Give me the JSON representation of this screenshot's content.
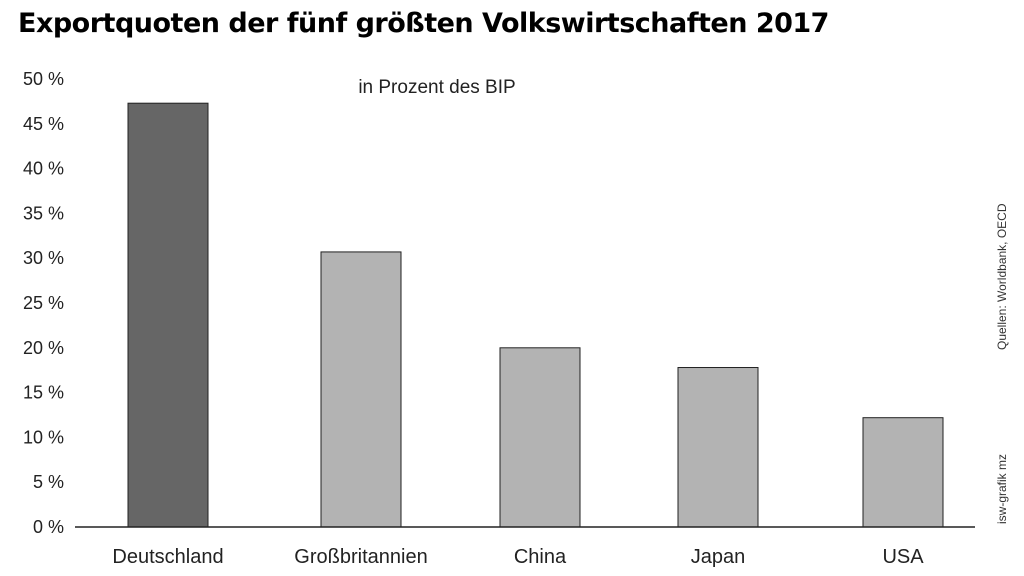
{
  "chart_data": {
    "type": "bar",
    "title": "Exportquoten der fünf größten Volkswirtschaften 2017",
    "subtitle": "in Prozent des BIP",
    "categories": [
      "Deutschland",
      "Großbritannien",
      "China",
      "Japan",
      "USA"
    ],
    "values": [
      47.3,
      30.7,
      20.0,
      17.8,
      12.2
    ],
    "ylim": [
      0,
      50
    ],
    "yticks": [
      "0 %",
      "5 %",
      "10 %",
      "15 %",
      "20 %",
      "25 %",
      "30 %",
      "35 %",
      "40 %",
      "45 %",
      "50 %"
    ],
    "grid": false,
    "legend": "none"
  },
  "colors": {
    "highlight_bar": "#666666",
    "bar": "#b3b3b3",
    "bar_stroke": "#222222",
    "axis": "#222222"
  },
  "source": "Quellen: Worldbank, OECD",
  "credit": "isw-grafik mz"
}
